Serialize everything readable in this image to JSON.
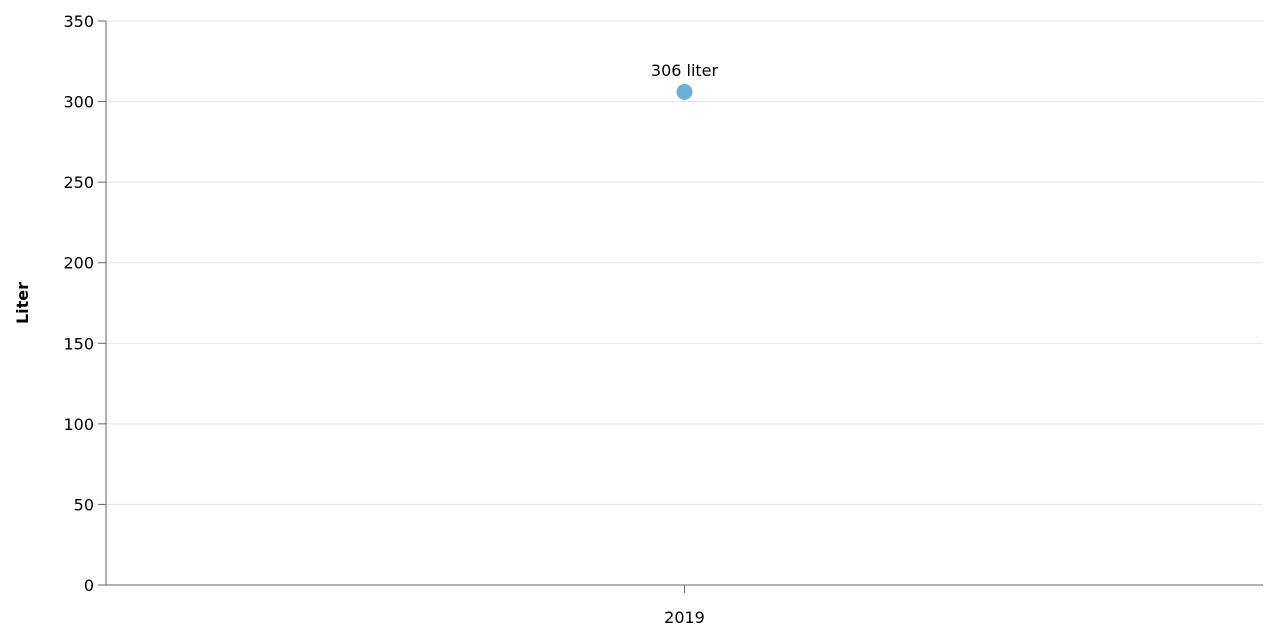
{
  "chart_data": {
    "type": "scatter",
    "title": "",
    "xlabel": "",
    "ylabel": "Liter",
    "categories": [
      "2019"
    ],
    "series": [
      {
        "values": [
          306
        ],
        "color": "#6baed6"
      }
    ],
    "data_labels": [
      "306 liter"
    ],
    "ylim": [
      0,
      350
    ],
    "yticks": [
      0,
      50,
      100,
      150,
      200,
      250,
      300,
      350
    ],
    "grid": true,
    "legend": "none"
  }
}
